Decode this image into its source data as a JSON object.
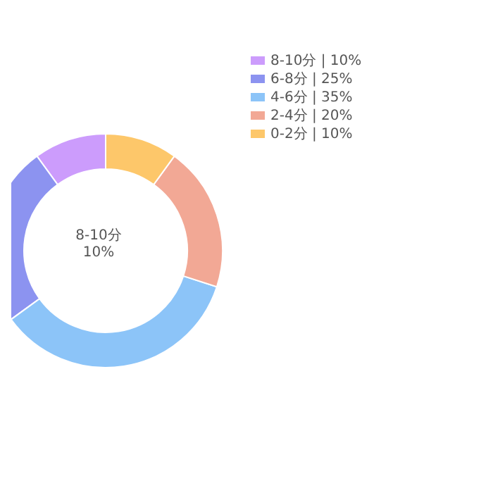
{
  "chart_data": {
    "type": "donut",
    "categories": [
      "8-10分 | 10%",
      "6-8分 | 25%",
      "4-6分 | 35%",
      "2-4分 | 20%",
      "0-2分 | 10%"
    ],
    "values": [
      10,
      25,
      35,
      20,
      10
    ],
    "colors": [
      "#cc9cfc",
      "#8c93f0",
      "#8cc4f8",
      "#f2a895",
      "#fdc76a"
    ],
    "legend": "top right",
    "annotations": [
      "8-10分\n10%"
    ]
  }
}
